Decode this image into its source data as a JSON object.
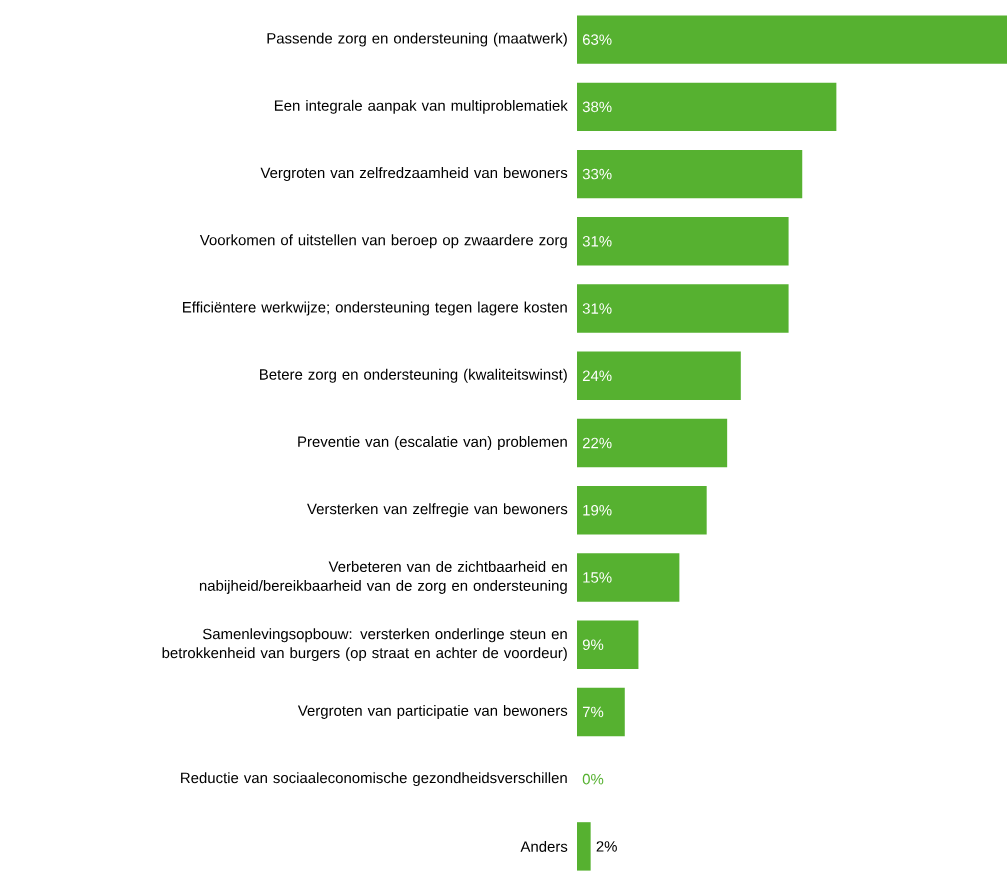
{
  "chart_data": {
    "type": "bar",
    "orientation": "horizontal",
    "categories": [
      "Passende zorg en ondersteuning (maatwerk)",
      "Een integrale aanpak van multiproblematiek",
      "Vergroten van zelfredzaamheid van bewoners",
      "Voorkomen of uitstellen van beroep op zwaardere zorg",
      "Efficiëntere werkwijze; ondersteuning tegen lagere kosten",
      "Betere zorg en ondersteuning (kwaliteitswinst)",
      "Preventie van (escalatie van) problemen",
      "Versterken van zelfregie van bewoners",
      "Verbeteren van de zichtbaarheid en nabijheid/bereikbaarheid van de zorg en ondersteuning",
      "Samenlevingsopbouw: versterken onderlinge steun en betrokkenheid van burgers (op straat en achter de voordeur)",
      "Vergroten van participatie van bewoners",
      "Reductie van sociaaleconomische gezondheidsverschillen",
      "Anders"
    ],
    "values": [
      63,
      38,
      33,
      31,
      31,
      24,
      22,
      19,
      15,
      9,
      7,
      0,
      2
    ],
    "value_labels": [
      "63%",
      "38%",
      "33%",
      "31%",
      "31%",
      "24%",
      "22%",
      "19%",
      "15%",
      "9%",
      "7%",
      "0%",
      "2%"
    ],
    "color": "#56b130"
  }
}
